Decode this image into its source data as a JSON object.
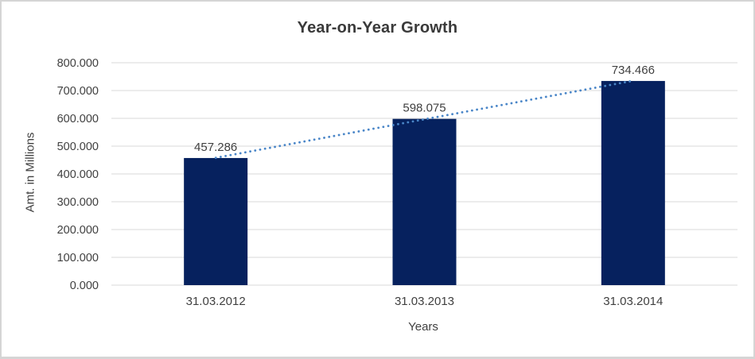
{
  "chart_data": {
    "type": "bar",
    "title": "Year-on-Year Growth",
    "xlabel": "Years",
    "ylabel": "Amt. in Millions",
    "categories": [
      "31.03.2012",
      "31.03.2013",
      "31.03.2014"
    ],
    "values": [
      457.286,
      598.075,
      734.466
    ],
    "value_labels": [
      "457.286",
      "598.075",
      "734.466"
    ],
    "ylim": [
      0,
      800
    ],
    "y_tick_step": 100,
    "y_tick_labels": [
      "0.000",
      "100.000",
      "200.000",
      "300.000",
      "400.000",
      "500.000",
      "600.000",
      "700.000",
      "800.000"
    ],
    "grid": true,
    "legend": "none",
    "trendline": {
      "type": "linear",
      "style": "dotted"
    },
    "colors": {
      "bar": "#06215E",
      "trendline": "#4A86C8",
      "grid": "#D9D9D9",
      "axis_text": "#404040",
      "title_text": "#3A3A3A",
      "background": "#FFFFFF",
      "border": "#D5D5D5"
    }
  }
}
